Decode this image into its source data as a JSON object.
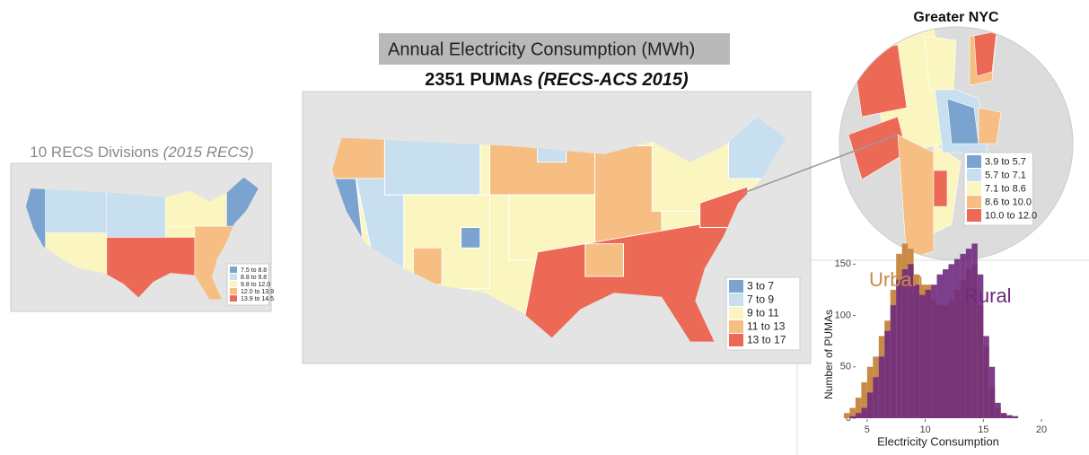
{
  "header": {
    "title": "Annual Electricity Consumption (MWh)"
  },
  "divisions_map": {
    "title": "10 RECS Divisions ",
    "title_italic": "(2015 RECS)",
    "legend": [
      {
        "label": "7.5 to 8.8",
        "color": "#7ba3d0"
      },
      {
        "label": "8.8 to 9.8",
        "color": "#c8dff0"
      },
      {
        "label": "9.8 to 12.0",
        "color": "#fbf6c0"
      },
      {
        "label": "12.0 to 13.9",
        "color": "#f6be82"
      },
      {
        "label": "13.9 to 14.5",
        "color": "#ec6a55"
      }
    ]
  },
  "puma_map": {
    "title": "2351 PUMAs ",
    "title_italic": "(RECS-ACS 2015)",
    "legend": [
      {
        "label": "3 to 7",
        "color": "#7ba3d0"
      },
      {
        "label": "7 to 9",
        "color": "#c8dff0"
      },
      {
        "label": "9 to 11",
        "color": "#fbf6c0"
      },
      {
        "label": "11 to 13",
        "color": "#f6be82"
      },
      {
        "label": "13 to 17",
        "color": "#ec6a55"
      }
    ]
  },
  "nyc_map": {
    "title": "Greater NYC",
    "legend": [
      {
        "label": "3.9 to 5.7",
        "color": "#7ba3d0"
      },
      {
        "label": "5.7 to 7.1",
        "color": "#c8dff0"
      },
      {
        "label": "7.1 to 8.6",
        "color": "#fbf6c0"
      },
      {
        "label": "8.6 to 10.0",
        "color": "#f6be82"
      },
      {
        "label": "10.0 to 12.0",
        "color": "#ec6a55"
      }
    ]
  },
  "chart_data": {
    "type": "histogram",
    "xlabel": "Electricity Consumption",
    "ylabel": "Number of PUMAs",
    "bins": [
      3,
      3.5,
      4,
      4.5,
      5,
      5.5,
      6,
      6.5,
      7,
      7.5,
      8,
      8.5,
      9,
      9.5,
      10,
      10.5,
      11,
      11.5,
      12,
      12.5,
      13,
      13.5,
      14,
      14.5,
      15,
      15.5,
      16,
      16.5,
      17,
      17.5,
      18
    ],
    "series": [
      {
        "name": "Urban",
        "color": "#c98a45",
        "values": [
          5,
          10,
          20,
          35,
          50,
          60,
          80,
          95,
          125,
          160,
          170,
          165,
          140,
          130,
          130,
          115,
          110,
          110,
          115,
          125,
          135,
          145,
          150,
          110,
          70,
          30,
          10,
          5,
          2,
          1
        ]
      },
      {
        "name": "Rural",
        "color": "#6f2a7e",
        "values": [
          0,
          2,
          5,
          10,
          25,
          40,
          60,
          85,
          110,
          135,
          145,
          150,
          130,
          120,
          125,
          130,
          140,
          145,
          150,
          155,
          160,
          165,
          170,
          140,
          80,
          50,
          15,
          5,
          3,
          2
        ]
      }
    ],
    "xlim": [
      2,
      21
    ],
    "ylim": [
      0,
      180
    ],
    "xticks": [
      5,
      10,
      15,
      20
    ],
    "yticks": [
      0,
      50,
      100,
      150
    ]
  }
}
